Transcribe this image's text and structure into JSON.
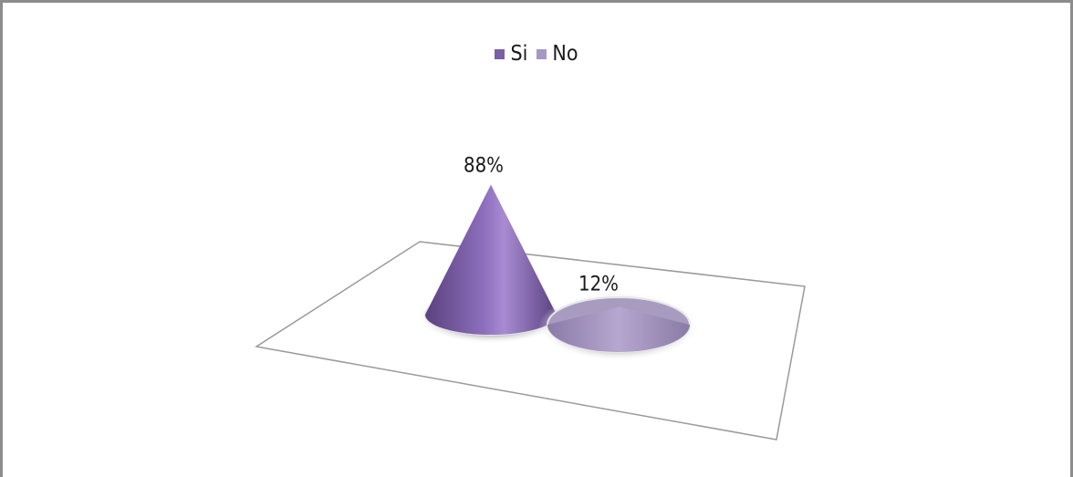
{
  "chart_data": {
    "type": "bar",
    "style": "3d-cone",
    "categories": [
      "Si",
      "No"
    ],
    "values": [
      88,
      12
    ],
    "value_labels": [
      "88%",
      "12%"
    ],
    "series_colors": [
      "#7a5ea6",
      "#a797c6"
    ],
    "legend_position": "top",
    "grid": false
  }
}
